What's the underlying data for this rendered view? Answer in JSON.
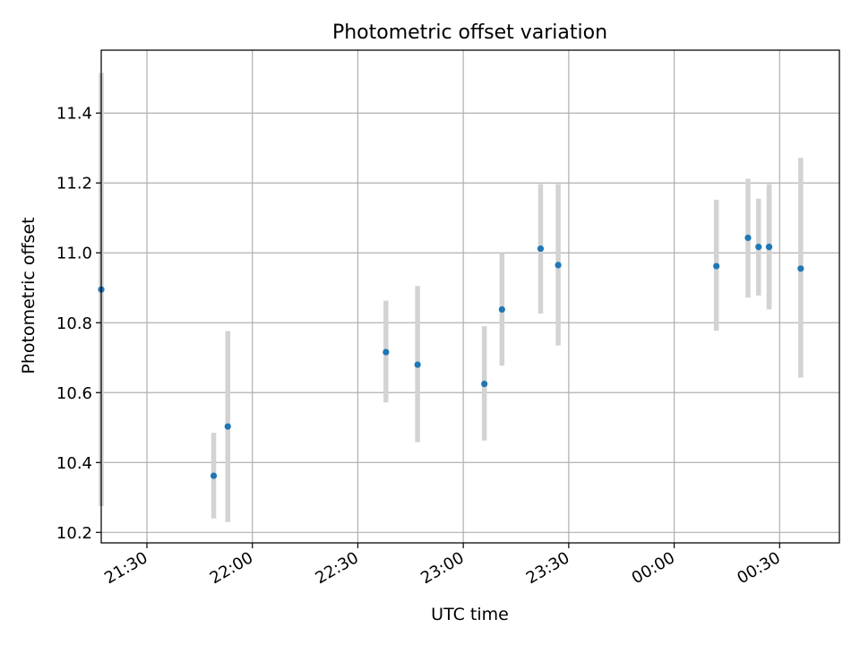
{
  "colors": {
    "point": "#1f77b4",
    "errorbar": "#d3d3d3",
    "grid": "#b0b0b0",
    "axes": "#000000",
    "background": "#ffffff"
  },
  "chart_data": {
    "type": "scatter",
    "title": "Photometric offset variation",
    "xlabel": "UTC time",
    "ylabel": "Photometric offset",
    "xlim": [
      "21:17",
      "00:47"
    ],
    "ylim": [
      10.17,
      11.58
    ],
    "grid": true,
    "x_ticks": [
      "21:30",
      "22:00",
      "22:30",
      "23:00",
      "23:30",
      "00:00",
      "00:30"
    ],
    "y_ticks": [
      "10.2",
      "10.4",
      "10.6",
      "10.8",
      "11.0",
      "11.2",
      "11.4"
    ],
    "series": [
      {
        "points": [
          {
            "x": "21:17",
            "y": 10.895,
            "err_low": 10.275,
            "err_high": 11.515
          },
          {
            "x": "21:49",
            "y": 10.362,
            "err_low": 10.24,
            "err_high": 10.485
          },
          {
            "x": "21:53",
            "y": 10.503,
            "err_low": 10.23,
            "err_high": 10.776
          },
          {
            "x": "22:38",
            "y": 10.716,
            "err_low": 10.572,
            "err_high": 10.863
          },
          {
            "x": "22:47",
            "y": 10.68,
            "err_low": 10.458,
            "err_high": 10.905
          },
          {
            "x": "23:06",
            "y": 10.625,
            "err_low": 10.463,
            "err_high": 10.79
          },
          {
            "x": "23:11",
            "y": 10.838,
            "err_low": 10.677,
            "err_high": 11.0
          },
          {
            "x": "23:22",
            "y": 11.012,
            "err_low": 10.826,
            "err_high": 11.197
          },
          {
            "x": "23:27",
            "y": 10.965,
            "err_low": 10.735,
            "err_high": 11.197
          },
          {
            "x": "00:12",
            "y": 10.962,
            "err_low": 10.777,
            "err_high": 11.152
          },
          {
            "x": "00:21",
            "y": 11.043,
            "err_low": 10.872,
            "err_high": 11.212
          },
          {
            "x": "00:24",
            "y": 11.017,
            "err_low": 10.878,
            "err_high": 11.155
          },
          {
            "x": "00:27",
            "y": 11.017,
            "err_low": 10.845,
            "err_high": 11.186
          },
          {
            "x": "00:27",
            "y": 11.017,
            "err_low": 10.838,
            "err_high": 11.197
          },
          {
            "x": "00:36",
            "y": 10.955,
            "err_low": 10.643,
            "err_high": 11.272
          }
        ]
      }
    ]
  }
}
